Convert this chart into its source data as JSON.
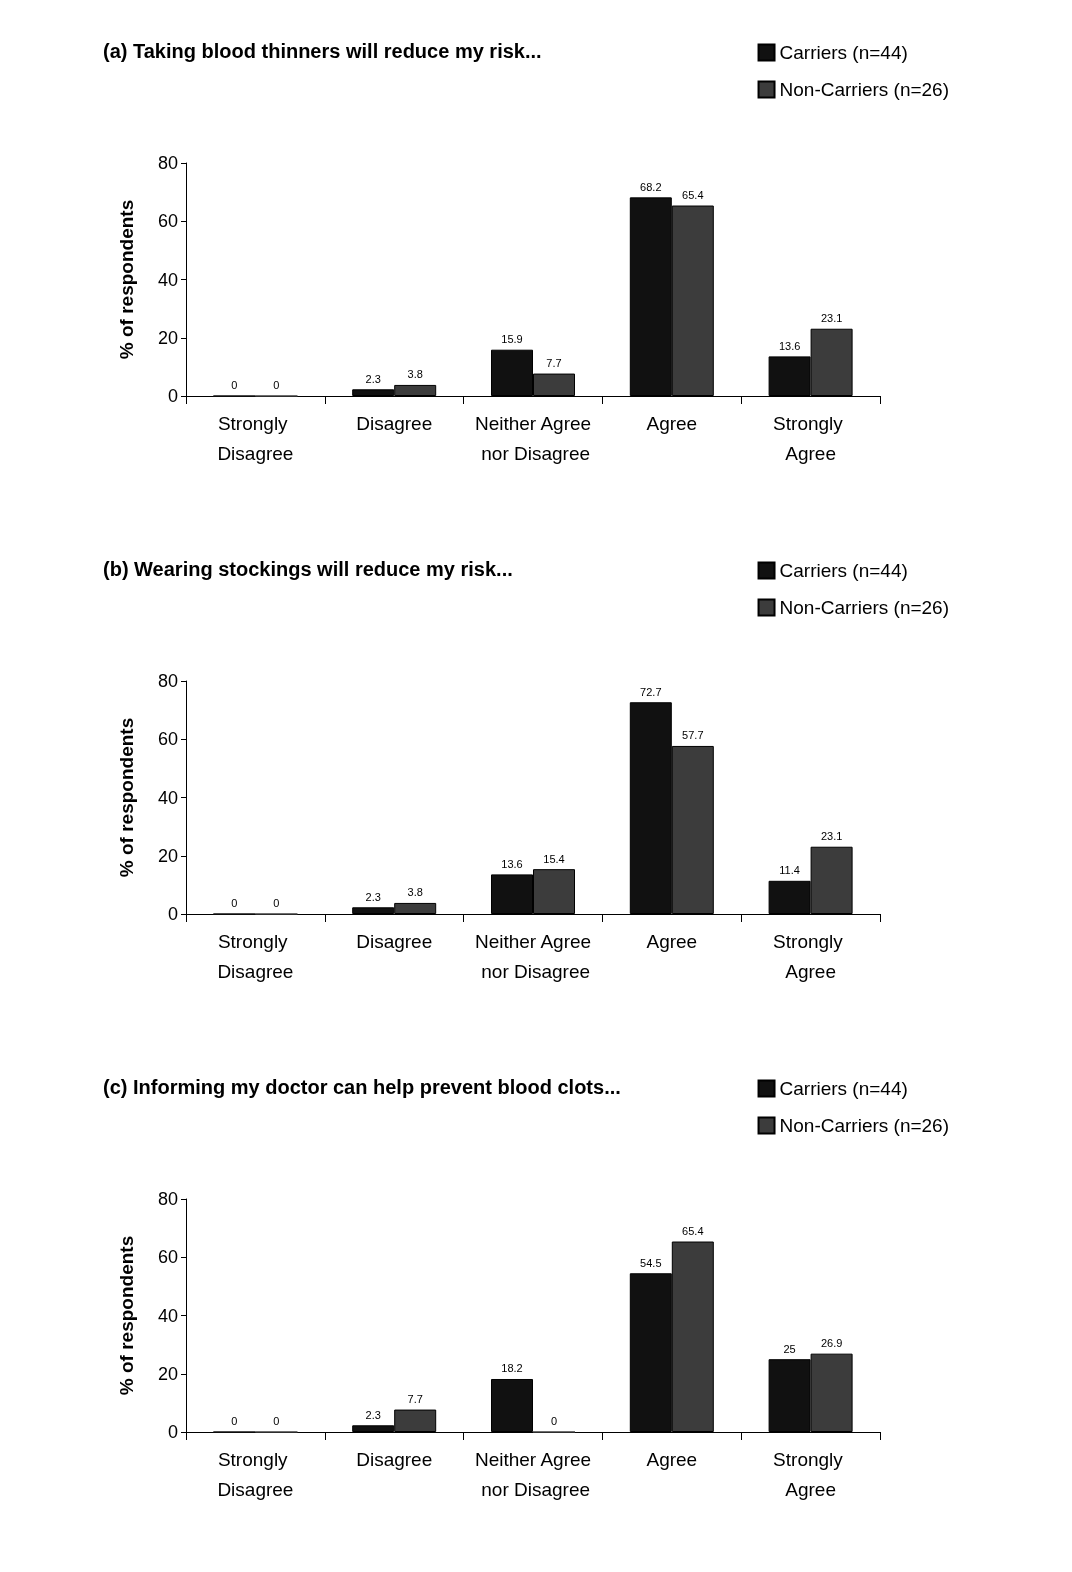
{
  "chart_data": [
    {
      "type": "bar",
      "title": "(a) Taking blood thinners will reduce my risk...",
      "ylabel": "% of respondents",
      "categories": [
        "Strongly Disagree",
        "Disagree",
        "Neither Agree nor Disagree",
        "Agree",
        "Strongly Agree"
      ],
      "series": [
        {
          "name": "Carriers (n=44)",
          "color": "#111111",
          "values": [
            0,
            2.3,
            15.9,
            68.2,
            13.6
          ]
        },
        {
          "name": "Non-Carriers (n=26)",
          "color": "#3c3c3c",
          "values": [
            0,
            3.8,
            7.7,
            65.4,
            23.1
          ]
        }
      ],
      "ylim": [
        0,
        80
      ],
      "yticks": [
        0,
        20,
        40,
        60,
        80
      ],
      "data_labels": true,
      "legend": "top right",
      "grid": false
    },
    {
      "type": "bar",
      "title": "(b) Wearing stockings will reduce my risk...",
      "ylabel": "% of respondents",
      "categories": [
        "Strongly Disagree",
        "Disagree",
        "Neither Agree nor Disagree",
        "Agree",
        "Strongly Agree"
      ],
      "series": [
        {
          "name": "Carriers (n=44)",
          "color": "#111111",
          "values": [
            0,
            2.3,
            13.6,
            72.7,
            11.4
          ]
        },
        {
          "name": "Non-Carriers (n=26)",
          "color": "#3c3c3c",
          "values": [
            0,
            3.8,
            15.4,
            57.7,
            23.1
          ]
        }
      ],
      "ylim": [
        0,
        80
      ],
      "yticks": [
        0,
        20,
        40,
        60,
        80
      ],
      "data_labels": true,
      "legend": "top right",
      "grid": false
    },
    {
      "type": "bar",
      "title": "(c) Informing my doctor can help prevent blood clots...",
      "ylabel": "% of respondents",
      "categories": [
        "Strongly Disagree",
        "Disagree",
        "Neither Agree nor Disagree",
        "Agree",
        "Strongly Agree"
      ],
      "series": [
        {
          "name": "Carriers (n=44)",
          "color": "#111111",
          "values": [
            0,
            2.3,
            18.2,
            54.5,
            25
          ]
        },
        {
          "name": "Non-Carriers (n=26)",
          "color": "#3c3c3c",
          "values": [
            0,
            7.7,
            0,
            65.4,
            26.9
          ]
        }
      ],
      "ylim": [
        0,
        80
      ],
      "yticks": [
        0,
        20,
        40,
        60,
        80
      ],
      "data_labels": true,
      "legend": "top right",
      "grid": false
    }
  ]
}
